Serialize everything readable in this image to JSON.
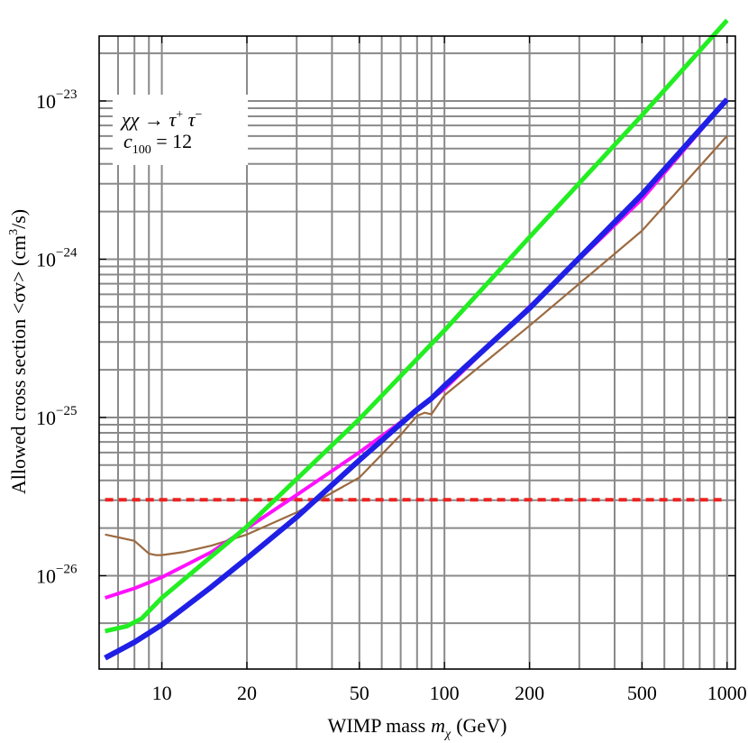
{
  "chart_data": {
    "type": "line",
    "title": "",
    "xlabel": "WIMP mass",
    "xlabel_var": "m",
    "xlabel_sub": "χ",
    "xlabel_unit": "(GeV)",
    "ylabel_pre": "Allowed cross section <σv> (cm",
    "ylabel_sup": "3",
    "ylabel_post": "/s)",
    "xscale": "log",
    "yscale": "log",
    "xlim": [
      6.0,
      1070
    ],
    "ylim_exp": [
      -26.59,
      -22.59
    ],
    "grid": true,
    "x_tick_labels": [
      "10",
      "20",
      "50",
      "100",
      "200",
      "500",
      "1000"
    ],
    "x_ticks": [
      10,
      20,
      50,
      100,
      200,
      500,
      1000
    ],
    "x_minor_grid": [
      6,
      7,
      8,
      9,
      30,
      40,
      60,
      70,
      80,
      90,
      300,
      400,
      600,
      700,
      800,
      900
    ],
    "y_tick_labels": [
      {
        "base": "10",
        "exp": "−26"
      },
      {
        "base": "10",
        "exp": "−25"
      },
      {
        "base": "10",
        "exp": "−24"
      },
      {
        "base": "10",
        "exp": "−23"
      }
    ],
    "y_ticks_exp": [
      -26,
      -25,
      -24,
      -23
    ],
    "y_minor_grid_exp": [
      -26.3,
      -25.699,
      -25.523,
      -25.398,
      -25.301,
      -25.222,
      -25.155,
      -25.097,
      -25.046,
      -24.699,
      -24.523,
      -24.398,
      -24.301,
      -24.222,
      -24.155,
      -24.097,
      -24.046,
      -23.699,
      -23.523,
      -23.398,
      -23.301,
      -23.222,
      -23.155,
      -23.097,
      -23.046,
      -22.699
    ],
    "annotation": {
      "line1": "χχ → τ",
      "line1_sup1": "+",
      "line1_mid": " τ",
      "line1_sup2": "−",
      "line2_var": "c",
      "line2_sub": "100",
      "line2_rest": " = 12"
    },
    "series": [
      {
        "name": "green",
        "color": "#22ee22",
        "x": [
          6.3,
          7.5,
          8.5,
          10,
          20,
          50,
          100,
          200,
          500,
          1000
        ],
        "y_exp": [
          -26.35,
          -26.32,
          -26.27,
          -26.14,
          -25.69,
          -25.01,
          -24.45,
          -23.86,
          -23.09,
          -22.49
        ]
      },
      {
        "name": "blue",
        "color": "#1f1fe6",
        "x": [
          6.3,
          8,
          10,
          15,
          20,
          30,
          50,
          70,
          80,
          90,
          100,
          200,
          500,
          1000
        ],
        "y_exp": [
          -26.52,
          -26.42,
          -26.31,
          -26.07,
          -25.89,
          -25.63,
          -25.27,
          -25.04,
          -24.95,
          -24.88,
          -24.8,
          -24.31,
          -23.59,
          -22.99
        ]
      },
      {
        "name": "magenta",
        "color": "#ff11ff",
        "x": [
          6.3,
          8,
          10,
          15,
          20,
          30,
          50,
          70,
          100,
          200,
          500,
          1000
        ],
        "y_exp": [
          -26.14,
          -26.08,
          -26.01,
          -25.85,
          -25.7,
          -25.49,
          -25.22,
          -25.03,
          -24.82,
          -24.3,
          -23.62,
          -22.99
        ]
      },
      {
        "name": "brown",
        "color": "#9c6a40",
        "x": [
          6.3,
          8,
          9,
          9.5,
          10,
          12,
          15,
          20,
          30,
          50,
          70,
          80,
          85,
          90,
          100,
          200,
          500,
          1000
        ],
        "y_exp": [
          -25.74,
          -25.78,
          -25.86,
          -25.87,
          -25.87,
          -25.85,
          -25.81,
          -25.74,
          -25.6,
          -25.38,
          -25.11,
          -24.99,
          -24.97,
          -24.98,
          -24.86,
          -24.42,
          -23.82,
          -23.22
        ]
      },
      {
        "name": "red dashed",
        "color": "#ee2222",
        "dashed": true,
        "x": [
          6.3,
          1000
        ],
        "y_exp": [
          -25.52,
          -25.52
        ]
      }
    ]
  }
}
